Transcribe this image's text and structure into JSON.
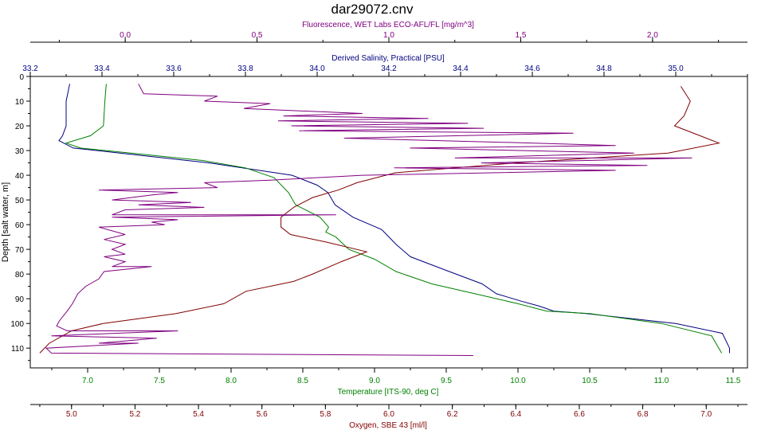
{
  "chart_data": {
    "type": "line",
    "title": "dar29072.cnv",
    "y_axis": {
      "label": "Depth [salt water, m]",
      "range": [
        0,
        118
      ],
      "ticks": [
        0,
        10,
        20,
        30,
        40,
        50,
        60,
        70,
        80,
        90,
        100,
        110
      ],
      "inverted": true
    },
    "axes": {
      "fluorescence": {
        "label": "Fluorescence, WET Labs ECO-AFL/FL [mg/m^3]",
        "range": [
          -0.36,
          2.36
        ],
        "ticks": [
          0.0,
          0.5,
          1.0,
          1.5,
          2.0
        ],
        "tick_labels": [
          "0.0",
          "0.5",
          "1.0",
          "1.5",
          "2.0"
        ],
        "position": "top-outer",
        "color": "#800080"
      },
      "salinity": {
        "label": "Derived Salinity, Practical [PSU]",
        "range": [
          33.2,
          35.2
        ],
        "ticks": [
          33.2,
          33.4,
          33.6,
          33.8,
          34.0,
          34.2,
          34.4,
          34.6,
          34.8,
          35.0
        ],
        "tick_labels": [
          "33.2",
          "33.4",
          "33.6",
          "33.8",
          "34.0",
          "34.2",
          "34.4",
          "34.6",
          "34.8",
          "35.0"
        ],
        "position": "top-inner",
        "color": "#000080"
      },
      "temperature": {
        "label": "Temperature [ITS-90, deg C]",
        "range": [
          6.6,
          11.6
        ],
        "ticks": [
          7.0,
          7.5,
          8.0,
          8.5,
          9.0,
          9.5,
          10.0,
          10.5,
          11.0,
          11.5
        ],
        "tick_labels": [
          "7.0",
          "7.5",
          "8.0",
          "8.5",
          "9.0",
          "9.5",
          "10.0",
          "10.5",
          "11.0",
          "11.5"
        ],
        "position": "bottom-inner",
        "color": "#008000"
      },
      "oxygen": {
        "label": "Oxygen, SBE 43 [ml/l]",
        "range": [
          4.87,
          7.13
        ],
        "ticks": [
          5.0,
          5.2,
          5.4,
          5.6,
          5.8,
          6.0,
          6.2,
          6.4,
          6.6,
          6.8,
          7.0
        ],
        "tick_labels": [
          "5.0",
          "5.2",
          "5.4",
          "5.6",
          "5.8",
          "6.0",
          "6.2",
          "6.4",
          "6.6",
          "6.8",
          "7.0"
        ],
        "position": "bottom-outer",
        "color": "#800000"
      }
    },
    "series": [
      {
        "axis": "salinity",
        "color": "#000080",
        "points": [
          [
            33.31,
            3
          ],
          [
            33.3,
            10
          ],
          [
            33.3,
            20
          ],
          [
            33.29,
            24
          ],
          [
            33.28,
            26
          ],
          [
            33.32,
            29
          ],
          [
            33.45,
            31
          ],
          [
            33.7,
            35
          ],
          [
            33.93,
            40
          ],
          [
            34.0,
            44
          ],
          [
            34.03,
            47
          ],
          [
            34.05,
            52
          ],
          [
            34.1,
            57
          ],
          [
            34.18,
            62
          ],
          [
            34.22,
            68
          ],
          [
            34.26,
            73
          ],
          [
            34.35,
            78
          ],
          [
            34.46,
            84
          ],
          [
            34.5,
            88
          ],
          [
            34.57,
            91
          ],
          [
            34.62,
            93
          ],
          [
            34.66,
            95
          ],
          [
            34.75,
            96
          ],
          [
            35.0,
            100
          ],
          [
            35.13,
            104
          ],
          [
            35.15,
            110
          ],
          [
            35.15,
            112
          ]
        ]
      },
      {
        "axis": "temperature",
        "color": "#008000",
        "points": [
          [
            7.13,
            3
          ],
          [
            7.12,
            10
          ],
          [
            7.11,
            20
          ],
          [
            7.02,
            24
          ],
          [
            6.85,
            27
          ],
          [
            6.95,
            29
          ],
          [
            7.3,
            31
          ],
          [
            7.8,
            34
          ],
          [
            8.1,
            37
          ],
          [
            8.3,
            41
          ],
          [
            8.4,
            47
          ],
          [
            8.45,
            52
          ],
          [
            8.62,
            57
          ],
          [
            8.68,
            61
          ],
          [
            8.66,
            63
          ],
          [
            8.73,
            65
          ],
          [
            8.82,
            70
          ],
          [
            9.0,
            74
          ],
          [
            9.15,
            79
          ],
          [
            9.4,
            84
          ],
          [
            9.7,
            88
          ],
          [
            10.0,
            92
          ],
          [
            10.2,
            95
          ],
          [
            10.5,
            96
          ],
          [
            11.0,
            100
          ],
          [
            11.35,
            105
          ],
          [
            11.4,
            110
          ],
          [
            11.42,
            112
          ]
        ]
      },
      {
        "axis": "oxygen",
        "color": "#800000",
        "points": [
          [
            6.92,
            4
          ],
          [
            6.95,
            10
          ],
          [
            6.93,
            16
          ],
          [
            6.9,
            20
          ],
          [
            6.98,
            24
          ],
          [
            7.04,
            27
          ],
          [
            6.88,
            31
          ],
          [
            6.4,
            35
          ],
          [
            6.02,
            39
          ],
          [
            5.9,
            43
          ],
          [
            5.84,
            46
          ],
          [
            5.76,
            49
          ],
          [
            5.7,
            53
          ],
          [
            5.66,
            57
          ],
          [
            5.66,
            61
          ],
          [
            5.69,
            64
          ],
          [
            5.8,
            67
          ],
          [
            5.93,
            71
          ],
          [
            5.85,
            75
          ],
          [
            5.76,
            80
          ],
          [
            5.7,
            83
          ],
          [
            5.55,
            87
          ],
          [
            5.48,
            92
          ],
          [
            5.33,
            96
          ],
          [
            5.1,
            100
          ],
          [
            5.0,
            103
          ],
          [
            4.93,
            108
          ],
          [
            4.9,
            112
          ]
        ]
      },
      {
        "axis": "fluorescence",
        "color": "#800080",
        "points": [
          [
            0.05,
            3
          ],
          [
            0.07,
            7
          ],
          [
            0.35,
            8
          ],
          [
            0.3,
            10
          ],
          [
            0.55,
            11
          ],
          [
            0.45,
            13
          ],
          [
            0.9,
            15
          ],
          [
            0.6,
            16
          ],
          [
            1.15,
            17
          ],
          [
            0.58,
            18
          ],
          [
            1.3,
            19
          ],
          [
            0.63,
            20
          ],
          [
            1.36,
            21
          ],
          [
            0.66,
            22
          ],
          [
            1.7,
            23
          ],
          [
            0.83,
            25
          ],
          [
            1.55,
            27
          ],
          [
            1.86,
            28
          ],
          [
            1.08,
            29
          ],
          [
            1.93,
            31
          ],
          [
            1.25,
            33
          ],
          [
            2.15,
            33
          ],
          [
            1.35,
            35
          ],
          [
            1.98,
            36
          ],
          [
            1.02,
            37
          ],
          [
            1.86,
            38
          ],
          [
            0.9,
            40
          ],
          [
            0.55,
            42
          ],
          [
            0.3,
            43
          ],
          [
            0.35,
            45
          ],
          [
            -0.1,
            46
          ],
          [
            0.2,
            47
          ],
          [
            0.1,
            48
          ],
          [
            -0.05,
            50
          ],
          [
            0.25,
            51
          ],
          [
            0.05,
            52
          ],
          [
            0.3,
            53
          ],
          [
            0.0,
            54
          ],
          [
            -0.05,
            56
          ],
          [
            0.8,
            56
          ],
          [
            -0.05,
            57
          ],
          [
            0.2,
            58
          ],
          [
            0.1,
            59
          ],
          [
            0.15,
            60
          ],
          [
            -0.1,
            61
          ],
          [
            0.0,
            64
          ],
          [
            -0.08,
            66
          ],
          [
            0.0,
            68
          ],
          [
            -0.05,
            70
          ],
          [
            0.0,
            72
          ],
          [
            -0.08,
            73
          ],
          [
            0.0,
            75
          ],
          [
            -0.05,
            77
          ],
          [
            0.1,
            77
          ],
          [
            -0.08,
            79
          ],
          [
            -0.1,
            82
          ],
          [
            -0.15,
            85
          ],
          [
            -0.18,
            88
          ],
          [
            -0.2,
            92
          ],
          [
            -0.22,
            95
          ],
          [
            -0.25,
            99
          ],
          [
            -0.26,
            101
          ],
          [
            -0.22,
            103
          ],
          [
            0.2,
            103
          ],
          [
            -0.28,
            105
          ],
          [
            0.12,
            106
          ],
          [
            -0.1,
            108
          ],
          [
            0.05,
            108
          ],
          [
            -0.3,
            110
          ],
          [
            -0.28,
            112
          ],
          [
            1.32,
            113
          ]
        ]
      }
    ]
  }
}
